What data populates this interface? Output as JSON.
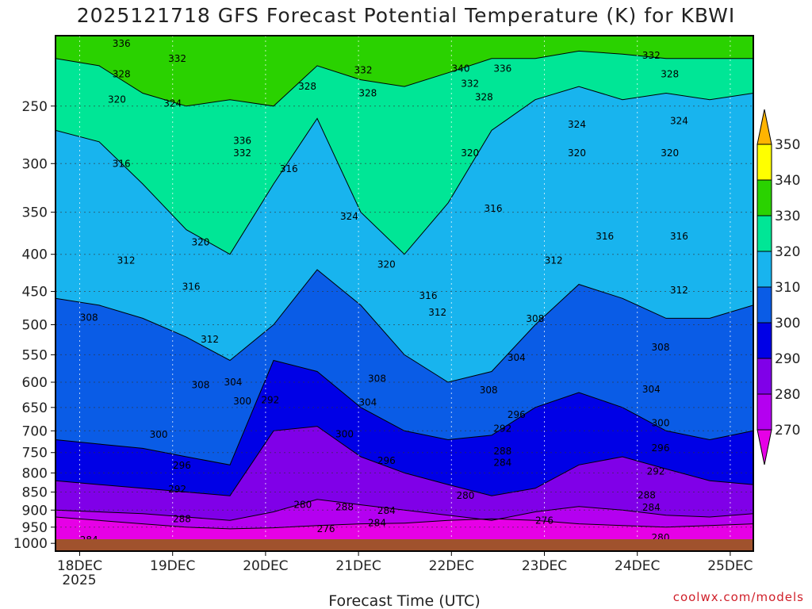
{
  "chart_data": {
    "type": "heatmap",
    "title": "2025121718 GFS Forecast Potential Temperature (K) for KBWI",
    "xlabel": "Forecast Time (UTC)",
    "credit": "coolwx.com/models",
    "y_axis": {
      "ticks": [
        250,
        300,
        350,
        400,
        450,
        500,
        550,
        600,
        650,
        700,
        750,
        800,
        850,
        900,
        950,
        1000
      ],
      "range_hPa": [
        200,
        1025
      ],
      "inverted": true
    },
    "x_axis": {
      "ticks": [
        "18DEC",
        "19DEC",
        "20DEC",
        "21DEC",
        "22DEC",
        "23DEC",
        "24DEC",
        "25DEC"
      ],
      "year_label": "2025",
      "grid": true
    },
    "colorbar": {
      "levels": [
        270,
        280,
        290,
        300,
        310,
        320,
        330,
        340,
        350
      ],
      "colors": [
        "#e600e6",
        "#b400f0",
        "#8000e8",
        "#0000e6",
        "#0a5ce6",
        "#18b4ee",
        "#00e696",
        "#2ad200",
        "#ffff00",
        "#ffb400"
      ]
    },
    "series": [
      {
        "name": "270",
        "values": [
          920,
          930,
          940,
          950,
          955,
          952,
          945,
          940,
          938,
          930,
          925,
          930,
          940,
          945,
          950,
          945,
          940
        ]
      },
      {
        "name": "280",
        "values": [
          900,
          905,
          910,
          920,
          930,
          905,
          870,
          885,
          900,
          915,
          930,
          905,
          890,
          900,
          915,
          920,
          910
        ]
      },
      {
        "name": "290",
        "values": [
          820,
          830,
          840,
          850,
          860,
          700,
          690,
          760,
          800,
          830,
          860,
          840,
          780,
          760,
          790,
          820,
          830
        ]
      },
      {
        "name": "300",
        "values": [
          720,
          730,
          740,
          760,
          780,
          560,
          580,
          650,
          700,
          720,
          710,
          650,
          620,
          650,
          700,
          720,
          700
        ]
      },
      {
        "name": "310",
        "values": [
          460,
          470,
          490,
          520,
          560,
          500,
          420,
          470,
          550,
          600,
          580,
          500,
          440,
          460,
          490,
          490,
          470
        ]
      },
      {
        "name": "320",
        "values": [
          270,
          280,
          320,
          370,
          400,
          320,
          260,
          350,
          400,
          340,
          270,
          245,
          235,
          245,
          240,
          245,
          240
        ]
      },
      {
        "name": "330",
        "values": [
          215,
          220,
          240,
          250,
          245,
          250,
          220,
          230,
          235,
          225,
          215,
          215,
          210,
          212,
          215,
          215,
          215
        ]
      }
    ],
    "labels": {
      "series_values": [
        336,
        332,
        328,
        324,
        320,
        316,
        312,
        308,
        304,
        300,
        296,
        292,
        288,
        284,
        280,
        276
      ],
      "annotations": [
        {
          "text": "336",
          "day": 0.45,
          "p": 205
        },
        {
          "text": "332",
          "day": 1.05,
          "p": 215
        },
        {
          "text": "328",
          "day": 0.45,
          "p": 226
        },
        {
          "text": "320",
          "day": 0.4,
          "p": 245
        },
        {
          "text": "324",
          "day": 1.0,
          "p": 248
        },
        {
          "text": "316",
          "day": 0.45,
          "p": 300
        },
        {
          "text": "312",
          "day": 0.5,
          "p": 408
        },
        {
          "text": "308",
          "day": 0.1,
          "p": 489
        },
        {
          "text": "300",
          "day": 0.85,
          "p": 708
        },
        {
          "text": "296",
          "day": 1.1,
          "p": 781
        },
        {
          "text": "292",
          "day": 1.05,
          "p": 842
        },
        {
          "text": "288",
          "day": 1.1,
          "p": 926
        },
        {
          "text": "284",
          "day": 0.1,
          "p": 990
        },
        {
          "text": "320",
          "day": 1.3,
          "p": 385
        },
        {
          "text": "316",
          "day": 1.2,
          "p": 443
        },
        {
          "text": "312",
          "day": 1.4,
          "p": 524
        },
        {
          "text": "308",
          "day": 1.3,
          "p": 605
        },
        {
          "text": "304",
          "day": 1.65,
          "p": 600
        },
        {
          "text": "300",
          "day": 1.75,
          "p": 637
        },
        {
          "text": "292",
          "day": 2.05,
          "p": 635
        },
        {
          "text": "336",
          "day": 1.75,
          "p": 279
        },
        {
          "text": "332",
          "day": 1.75,
          "p": 290
        },
        {
          "text": "316",
          "day": 2.25,
          "p": 305
        },
        {
          "text": "328",
          "day": 2.45,
          "p": 235
        },
        {
          "text": "332",
          "day": 3.05,
          "p": 223
        },
        {
          "text": "328",
          "day": 3.1,
          "p": 240
        },
        {
          "text": "324",
          "day": 2.9,
          "p": 355
        },
        {
          "text": "320",
          "day": 3.3,
          "p": 413
        },
        {
          "text": "316",
          "day": 3.75,
          "p": 456
        },
        {
          "text": "312",
          "day": 3.85,
          "p": 481
        },
        {
          "text": "308",
          "day": 3.2,
          "p": 593
        },
        {
          "text": "304",
          "day": 3.1,
          "p": 640
        },
        {
          "text": "300",
          "day": 2.85,
          "p": 707
        },
        {
          "text": "296",
          "day": 3.3,
          "p": 770
        },
        {
          "text": "280",
          "day": 2.4,
          "p": 885
        },
        {
          "text": "288",
          "day": 2.85,
          "p": 892
        },
        {
          "text": "284",
          "day": 3.3,
          "p": 902
        },
        {
          "text": "284",
          "day": 3.2,
          "p": 938
        },
        {
          "text": "276",
          "day": 2.65,
          "p": 955
        },
        {
          "text": "340",
          "day": 4.1,
          "p": 222
        },
        {
          "text": "336",
          "day": 4.55,
          "p": 222
        },
        {
          "text": "332",
          "day": 4.2,
          "p": 233
        },
        {
          "text": "328",
          "day": 4.35,
          "p": 243
        },
        {
          "text": "320",
          "day": 4.2,
          "p": 290
        },
        {
          "text": "316",
          "day": 4.45,
          "p": 346
        },
        {
          "text": "308",
          "day": 4.4,
          "p": 615
        },
        {
          "text": "296",
          "day": 4.7,
          "p": 665
        },
        {
          "text": "292",
          "day": 4.55,
          "p": 695
        },
        {
          "text": "288",
          "day": 4.55,
          "p": 747
        },
        {
          "text": "284",
          "day": 4.55,
          "p": 774
        },
        {
          "text": "280",
          "day": 4.15,
          "p": 860
        },
        {
          "text": "276",
          "day": 5.0,
          "p": 930
        },
        {
          "text": "304",
          "day": 4.7,
          "p": 555
        },
        {
          "text": "308",
          "day": 4.9,
          "p": 491
        },
        {
          "text": "312",
          "day": 5.1,
          "p": 408
        },
        {
          "text": "324",
          "day": 5.35,
          "p": 265
        },
        {
          "text": "320",
          "day": 5.35,
          "p": 290
        },
        {
          "text": "316",
          "day": 5.65,
          "p": 378
        },
        {
          "text": "332",
          "day": 6.15,
          "p": 213
        },
        {
          "text": "328",
          "day": 6.35,
          "p": 226
        },
        {
          "text": "324",
          "day": 6.45,
          "p": 262
        },
        {
          "text": "320",
          "day": 6.35,
          "p": 290
        },
        {
          "text": "316",
          "day": 6.45,
          "p": 378
        },
        {
          "text": "312",
          "day": 6.45,
          "p": 448
        },
        {
          "text": "308",
          "day": 6.25,
          "p": 537
        },
        {
          "text": "304",
          "day": 6.15,
          "p": 614
        },
        {
          "text": "300",
          "day": 6.25,
          "p": 683
        },
        {
          "text": "296",
          "day": 6.25,
          "p": 739
        },
        {
          "text": "292",
          "day": 6.2,
          "p": 796
        },
        {
          "text": "288",
          "day": 6.1,
          "p": 858
        },
        {
          "text": "284",
          "day": 6.15,
          "p": 893
        },
        {
          "text": "280",
          "day": 6.25,
          "p": 982
        }
      ]
    }
  }
}
